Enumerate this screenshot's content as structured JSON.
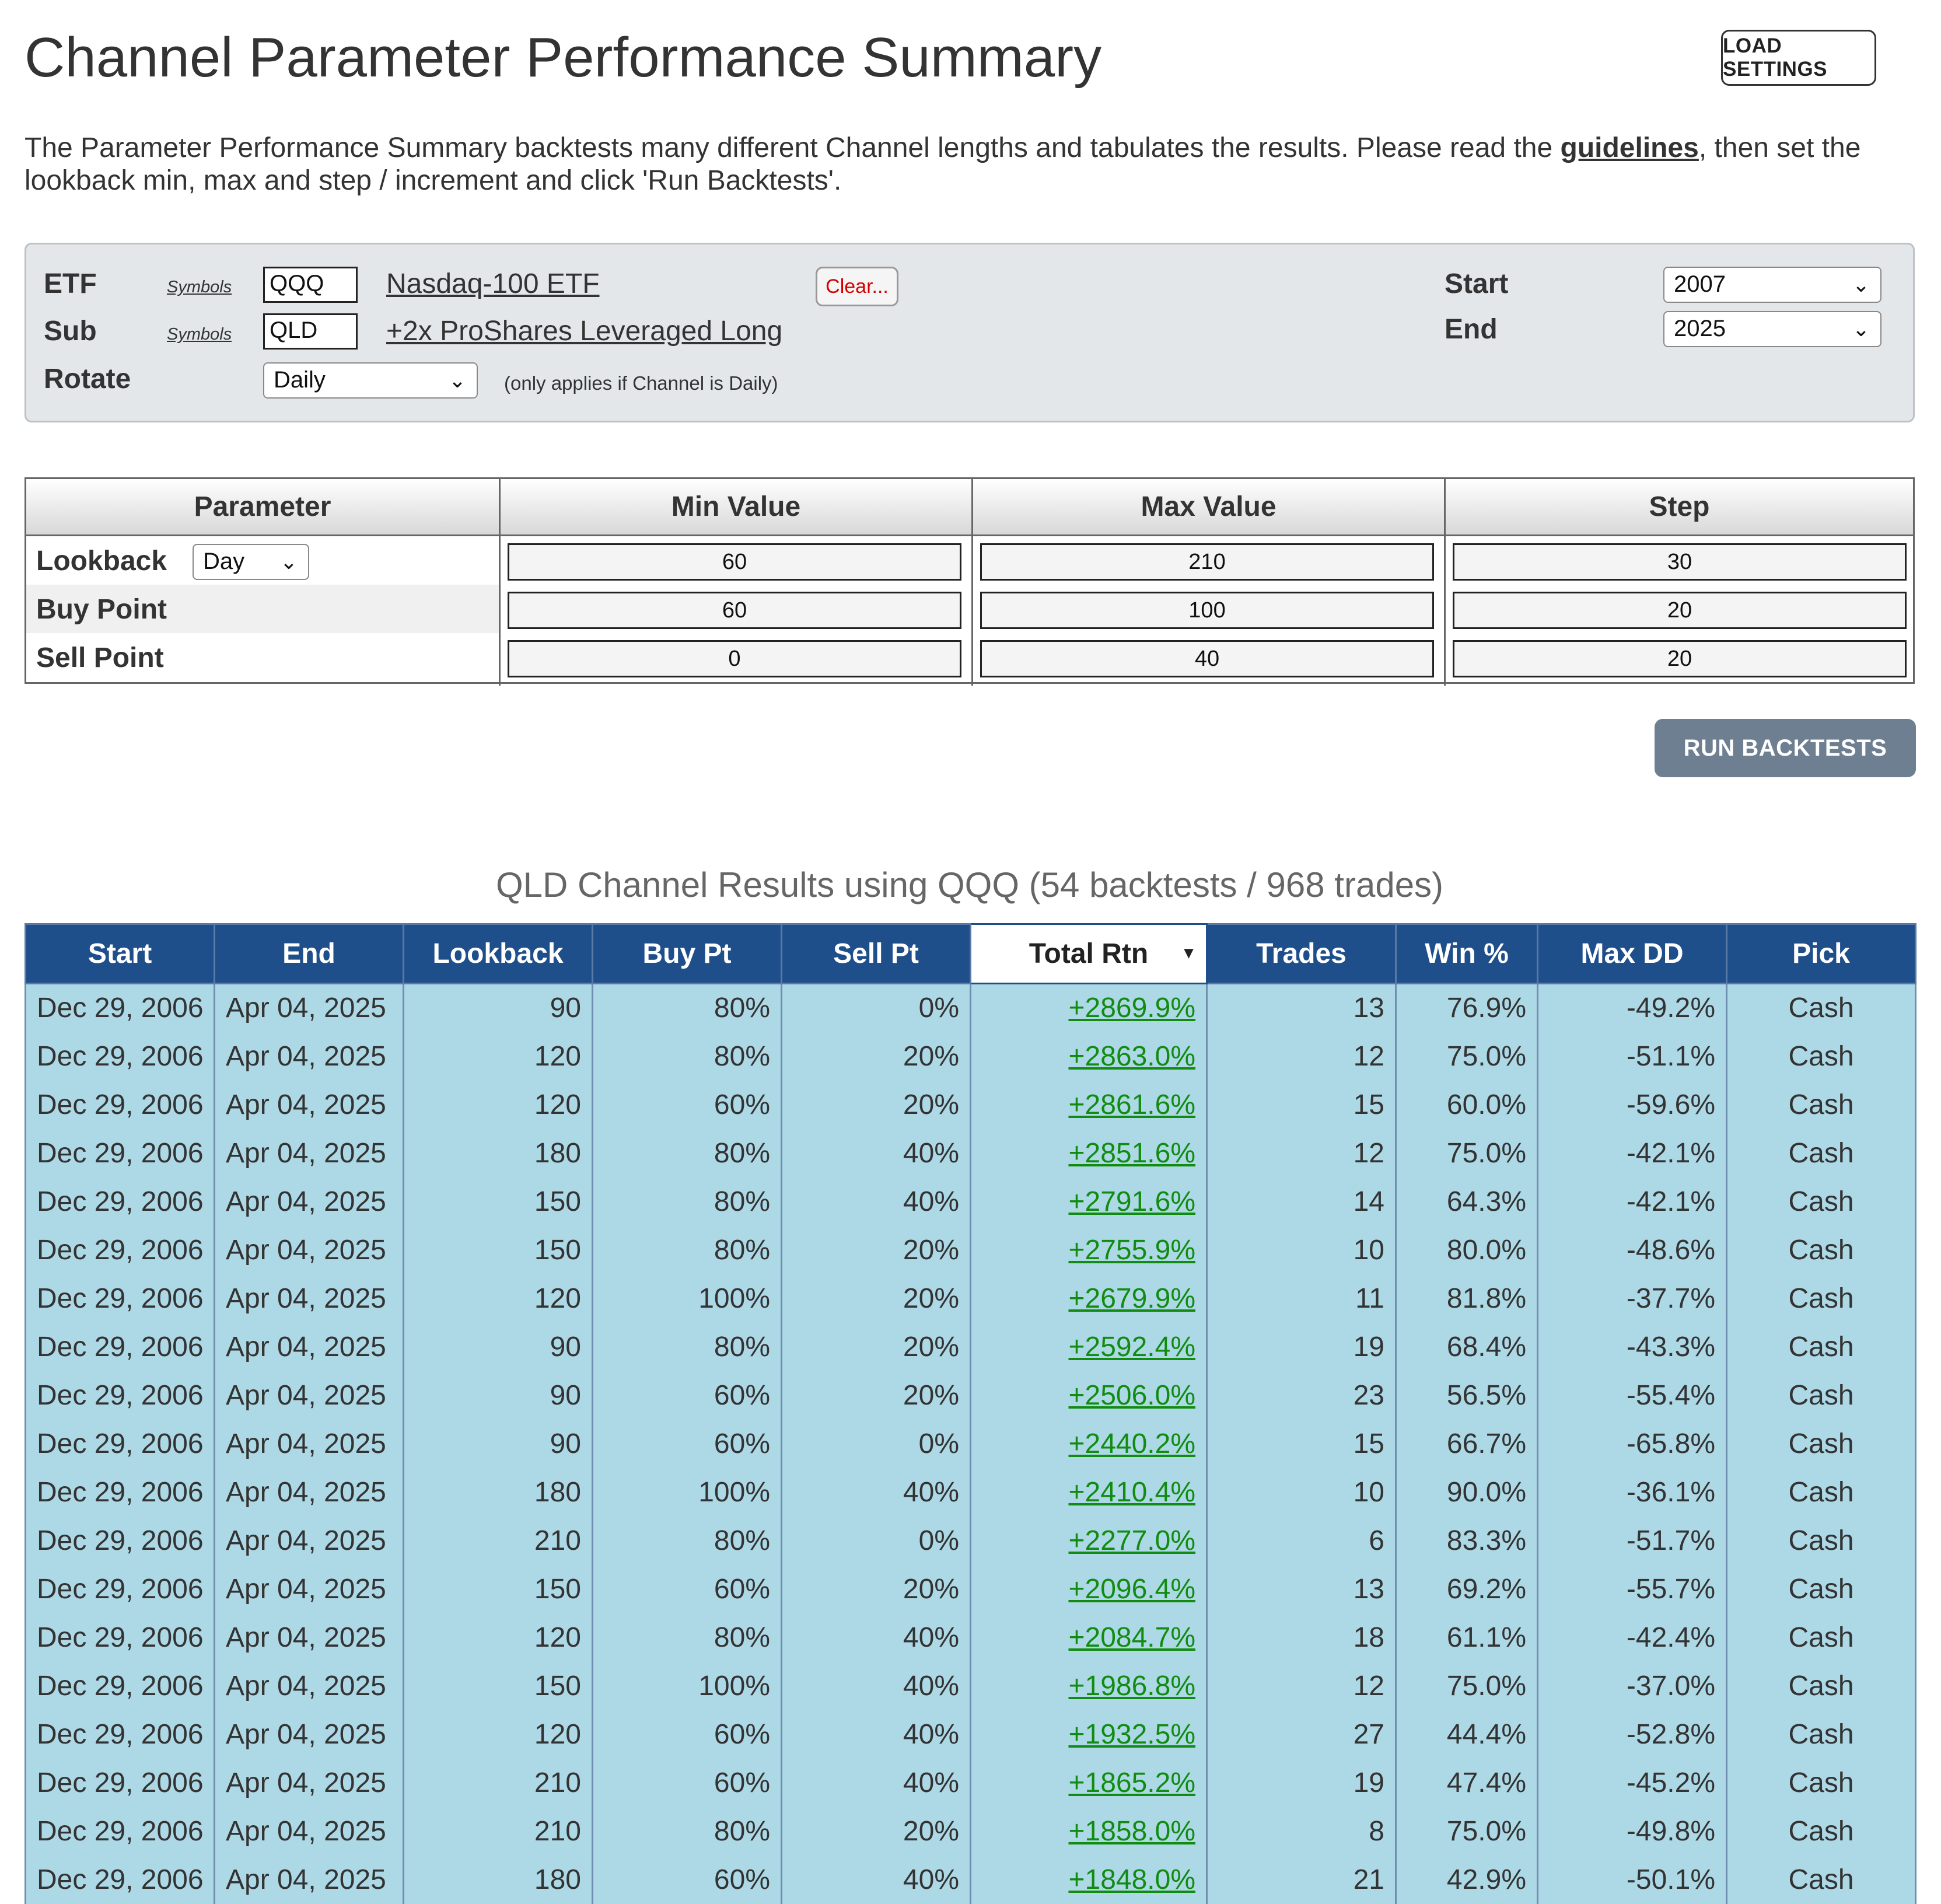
{
  "header": {
    "title": "Channel Parameter Performance Summary",
    "load_settings": "LOAD SETTINGS",
    "intro_before": "The Parameter Performance Summary backtests many different Channel lengths and tabulates the results.  Please read the ",
    "intro_link": "guidelines",
    "intro_after": ", then set the lookback min, max and step / increment and click 'Run Backtests'."
  },
  "settings": {
    "etf_label": "ETF",
    "sub_label": "Sub",
    "rotate_label": "Rotate",
    "symbols_link": "Symbols",
    "etf_symbol": "QQQ",
    "etf_name": "Nasdaq-100 ETF",
    "sub_symbol": "QLD",
    "sub_name": "+2x ProShares Leveraged Long",
    "clear_label": "Clear...",
    "rotate_value": "Daily",
    "rotate_note": "(only applies if Channel is Daily)",
    "start_label": "Start",
    "end_label": "End",
    "start_value": "2007",
    "end_value": "2025"
  },
  "params": {
    "headers": [
      "Parameter",
      "Min Value",
      "Max Value",
      "Step"
    ],
    "lookback_label": "Lookback",
    "lookback_unit": "Day",
    "rows": [
      {
        "label": "Lookback",
        "min": "60",
        "max": "210",
        "step": "30"
      },
      {
        "label": "Buy Point",
        "min": "60",
        "max": "100",
        "step": "20"
      },
      {
        "label": "Sell Point",
        "min": "0",
        "max": "40",
        "step": "20"
      }
    ]
  },
  "run_label": "RUN BACKTESTS",
  "results": {
    "title": "QLD Channel Results using QQQ (54 backtests / 968 trades)",
    "columns": [
      "Start",
      "End",
      "Lookback",
      "Buy Pt",
      "Sell Pt",
      "Total Rtn",
      "Trades",
      "Win %",
      "Max DD",
      "Pick"
    ],
    "sort_indicator": "▾",
    "rows": [
      [
        "Dec 29, 2006",
        "Apr 04, 2025",
        "90",
        "80%",
        "0%",
        "+2869.9%",
        "13",
        "76.9%",
        "-49.2%",
        "Cash"
      ],
      [
        "Dec 29, 2006",
        "Apr 04, 2025",
        "120",
        "80%",
        "20%",
        "+2863.0%",
        "12",
        "75.0%",
        "-51.1%",
        "Cash"
      ],
      [
        "Dec 29, 2006",
        "Apr 04, 2025",
        "120",
        "60%",
        "20%",
        "+2861.6%",
        "15",
        "60.0%",
        "-59.6%",
        "Cash"
      ],
      [
        "Dec 29, 2006",
        "Apr 04, 2025",
        "180",
        "80%",
        "40%",
        "+2851.6%",
        "12",
        "75.0%",
        "-42.1%",
        "Cash"
      ],
      [
        "Dec 29, 2006",
        "Apr 04, 2025",
        "150",
        "80%",
        "40%",
        "+2791.6%",
        "14",
        "64.3%",
        "-42.1%",
        "Cash"
      ],
      [
        "Dec 29, 2006",
        "Apr 04, 2025",
        "150",
        "80%",
        "20%",
        "+2755.9%",
        "10",
        "80.0%",
        "-48.6%",
        "Cash"
      ],
      [
        "Dec 29, 2006",
        "Apr 04, 2025",
        "120",
        "100%",
        "20%",
        "+2679.9%",
        "11",
        "81.8%",
        "-37.7%",
        "Cash"
      ],
      [
        "Dec 29, 2006",
        "Apr 04, 2025",
        "90",
        "80%",
        "20%",
        "+2592.4%",
        "19",
        "68.4%",
        "-43.3%",
        "Cash"
      ],
      [
        "Dec 29, 2006",
        "Apr 04, 2025",
        "90",
        "60%",
        "20%",
        "+2506.0%",
        "23",
        "56.5%",
        "-55.4%",
        "Cash"
      ],
      [
        "Dec 29, 2006",
        "Apr 04, 2025",
        "90",
        "60%",
        "0%",
        "+2440.2%",
        "15",
        "66.7%",
        "-65.8%",
        "Cash"
      ],
      [
        "Dec 29, 2006",
        "Apr 04, 2025",
        "180",
        "100%",
        "40%",
        "+2410.4%",
        "10",
        "90.0%",
        "-36.1%",
        "Cash"
      ],
      [
        "Dec 29, 2006",
        "Apr 04, 2025",
        "210",
        "80%",
        "0%",
        "+2277.0%",
        "6",
        "83.3%",
        "-51.7%",
        "Cash"
      ],
      [
        "Dec 29, 2006",
        "Apr 04, 2025",
        "150",
        "60%",
        "20%",
        "+2096.4%",
        "13",
        "69.2%",
        "-55.7%",
        "Cash"
      ],
      [
        "Dec 29, 2006",
        "Apr 04, 2025",
        "120",
        "80%",
        "40%",
        "+2084.7%",
        "18",
        "61.1%",
        "-42.4%",
        "Cash"
      ],
      [
        "Dec 29, 2006",
        "Apr 04, 2025",
        "150",
        "100%",
        "40%",
        "+1986.8%",
        "12",
        "75.0%",
        "-37.0%",
        "Cash"
      ],
      [
        "Dec 29, 2006",
        "Apr 04, 2025",
        "120",
        "60%",
        "40%",
        "+1932.5%",
        "27",
        "44.4%",
        "-52.8%",
        "Cash"
      ],
      [
        "Dec 29, 2006",
        "Apr 04, 2025",
        "210",
        "60%",
        "40%",
        "+1865.2%",
        "19",
        "47.4%",
        "-45.2%",
        "Cash"
      ],
      [
        "Dec 29, 2006",
        "Apr 04, 2025",
        "210",
        "80%",
        "20%",
        "+1858.0%",
        "8",
        "75.0%",
        "-49.8%",
        "Cash"
      ],
      [
        "Dec 29, 2006",
        "Apr 04, 2025",
        "180",
        "60%",
        "40%",
        "+1848.0%",
        "21",
        "42.9%",
        "-50.1%",
        "Cash"
      ]
    ]
  },
  "colors": {
    "header_blue": "#1f4f8b",
    "row_blue": "#add8e6",
    "return_green": "#118c11",
    "clear_red": "#d40000",
    "run_button": "#6e7f91"
  },
  "icons": {
    "dropdown": "chevron-down-icon",
    "sort": "sort-desc-icon"
  }
}
